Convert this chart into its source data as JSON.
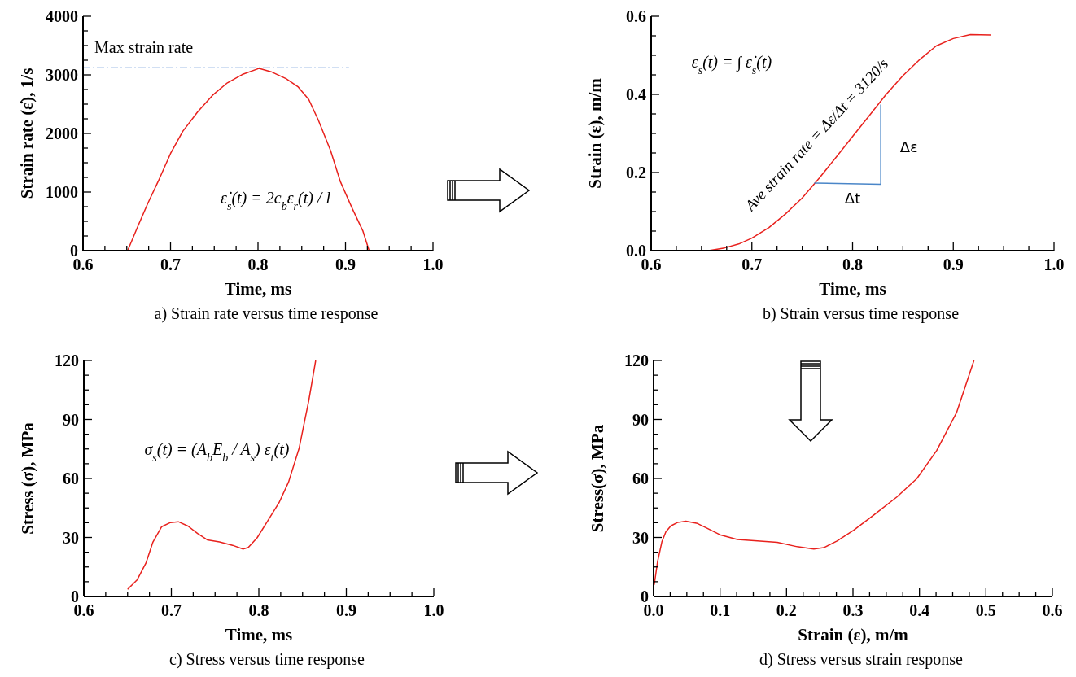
{
  "chart_data": [
    {
      "type": "line",
      "title": "a) Strain rate versus time response",
      "xlabel": "Time, ms",
      "ylabel": "Strain rate (ε̇), 1/s",
      "x": [
        0.651,
        0.663,
        0.674,
        0.686,
        0.7,
        0.714,
        0.731,
        0.748,
        0.765,
        0.782,
        0.801,
        0.815,
        0.832,
        0.846,
        0.858,
        0.869,
        0.883,
        0.894,
        0.908,
        0.92,
        0.927
      ],
      "series": [
        {
          "color": "#e8211d",
          "values": [
            0,
            426,
            805,
            1185,
            1657,
            2036,
            2367,
            2651,
            2864,
            3006,
            3110,
            3053,
            2935,
            2793,
            2580,
            2225,
            1704,
            1183,
            710,
            331,
            0
          ]
        }
      ],
      "xlim": [
        0.6,
        1.0
      ],
      "ylim": [
        0,
        4000
      ],
      "xticks": [
        0.6,
        {
          "value": 0.625,
          "label": null
        },
        {
          "value": 0.65,
          "label": null
        },
        {
          "value": 0.675,
          "label": null
        },
        0.7,
        {
          "value": 0.725,
          "label": null
        },
        {
          "value": 0.75,
          "label": null
        },
        {
          "value": 0.775,
          "label": null
        },
        0.8,
        {
          "value": 0.825,
          "label": null
        },
        {
          "value": 0.85,
          "label": null
        },
        {
          "value": 0.875,
          "label": null
        },
        0.9,
        {
          "value": 0.925,
          "label": null
        },
        {
          "value": 0.95,
          "label": null
        },
        {
          "value": 0.975,
          "label": null
        },
        {
          "value": 1.0,
          "label": "1.0"
        }
      ],
      "yticks": [
        0,
        {
          "value": 250,
          "label": null
        },
        {
          "value": 500,
          "label": null
        },
        {
          "value": 750,
          "label": null
        },
        1000,
        {
          "value": 1250,
          "label": null
        },
        {
          "value": 1500,
          "label": null
        },
        {
          "value": 1750,
          "label": null
        },
        2000,
        {
          "value": 2250,
          "label": null
        },
        {
          "value": 2500,
          "label": null
        },
        {
          "value": 2750,
          "label": null
        },
        3000,
        {
          "value": 3250,
          "label": null
        },
        {
          "value": 3500,
          "label": null
        },
        {
          "value": 3750,
          "label": null
        },
        4000
      ],
      "ref_lines": [
        {
          "axis": "y",
          "value": 3120,
          "label": "Max strain rate",
          "color": "#4a7fd0",
          "line_style": "dashed"
        }
      ],
      "annotations": [
        "ε̇$_{s}$(t) = 2c$_{b}$ε$_{r}$(t) / l"
      ]
    },
    {
      "type": "line",
      "title": "b) Strain versus time response",
      "xlabel": "Time, ms",
      "ylabel": "Strain (ε), m/m",
      "series": [
        {
          "color": "#e8211d",
          "x": [
            0.657,
            0.673,
            0.687,
            0.7,
            0.717,
            0.733,
            0.75,
            0.767,
            0.783,
            0.8,
            0.817,
            0.833,
            0.85,
            0.867,
            0.883,
            0.9,
            0.917,
            0.937
          ],
          "values": [
            0,
            0.007,
            0.017,
            0.032,
            0.059,
            0.093,
            0.135,
            0.186,
            0.237,
            0.292,
            0.347,
            0.399,
            0.448,
            0.49,
            0.524,
            0.543,
            0.553,
            0.552
          ]
        },
        {
          "color": "#4a86c8",
          "x": [
            0.762,
            0.828,
            0.828
          ],
          "values": [
            0.173,
            0.17,
            0.374
          ]
        }
      ],
      "xlim": [
        0.6,
        1.0
      ],
      "ylim": [
        0,
        0.6
      ],
      "xticks": [
        0.6,
        {
          "value": 0.625,
          "label": null
        },
        {
          "value": 0.65,
          "label": null
        },
        {
          "value": 0.675,
          "label": null
        },
        0.7,
        {
          "value": 0.725,
          "label": null
        },
        {
          "value": 0.75,
          "label": null
        },
        {
          "value": 0.775,
          "label": null
        },
        0.8,
        {
          "value": 0.825,
          "label": null
        },
        {
          "value": 0.85,
          "label": null
        },
        {
          "value": 0.875,
          "label": null
        },
        0.9,
        {
          "value": 0.925,
          "label": null
        },
        {
          "value": 0.95,
          "label": null
        },
        {
          "value": 0.975,
          "label": null
        },
        {
          "value": 1.0,
          "label": "1.0"
        }
      ],
      "yticks": [
        {
          "value": 0,
          "label": "0.0"
        },
        {
          "value": 0.05,
          "label": null
        },
        {
          "value": 0.1,
          "label": null
        },
        {
          "value": 0.15,
          "label": null
        },
        0.2,
        {
          "value": 0.25,
          "label": null
        },
        {
          "value": 0.3,
          "label": null
        },
        {
          "value": 0.35,
          "label": null
        },
        0.4,
        {
          "value": 0.45,
          "label": null
        },
        {
          "value": 0.5,
          "label": null
        },
        {
          "value": 0.55,
          "label": null
        },
        0.6
      ],
      "annotations": [
        "ε$_{s}$(t) = ∫ ε̇$_{s}$(t)",
        "Ave strain rate = Δε/Δt = 3120/s",
        "Δε",
        "Δt"
      ]
    },
    {
      "type": "line",
      "title": "c) Stress versus time response",
      "xlabel": "Time, ms",
      "ylabel": "Stress (σ), MPa",
      "x": [
        0.65,
        0.661,
        0.671,
        0.679,
        0.689,
        0.699,
        0.708,
        0.719,
        0.73,
        0.741,
        0.755,
        0.77,
        0.782,
        0.788,
        0.798,
        0.809,
        0.823,
        0.834,
        0.846,
        0.857,
        0.865
      ],
      "series": [
        {
          "color": "#e8211d",
          "values": [
            3.6,
            8.5,
            17,
            27.7,
            35.5,
            37.6,
            38,
            35.8,
            32,
            28.8,
            27.7,
            26,
            24.1,
            24.9,
            29.8,
            37.6,
            47.6,
            58.2,
            75.3,
            99.4,
            120
          ]
        }
      ],
      "xlim": [
        0.6,
        1.0
      ],
      "ylim": [
        0,
        120
      ],
      "xticks": [
        0.6,
        {
          "value": 0.625,
          "label": null
        },
        {
          "value": 0.65,
          "label": null
        },
        {
          "value": 0.675,
          "label": null
        },
        0.7,
        {
          "value": 0.725,
          "label": null
        },
        {
          "value": 0.75,
          "label": null
        },
        {
          "value": 0.775,
          "label": null
        },
        0.8,
        {
          "value": 0.825,
          "label": null
        },
        {
          "value": 0.85,
          "label": null
        },
        {
          "value": 0.875,
          "label": null
        },
        0.9,
        {
          "value": 0.925,
          "label": null
        },
        {
          "value": 0.95,
          "label": null
        },
        {
          "value": 0.975,
          "label": null
        },
        {
          "value": 1.0,
          "label": "1.0"
        }
      ],
      "yticks": [
        0,
        {
          "value": 7.5,
          "label": null
        },
        {
          "value": 15,
          "label": null
        },
        {
          "value": 22.5,
          "label": null
        },
        30,
        {
          "value": 37.5,
          "label": null
        },
        {
          "value": 45,
          "label": null
        },
        {
          "value": 52.5,
          "label": null
        },
        60,
        {
          "value": 67.5,
          "label": null
        },
        {
          "value": 75,
          "label": null
        },
        {
          "value": 82.5,
          "label": null
        },
        90,
        {
          "value": 97.5,
          "label": null
        },
        {
          "value": 105,
          "label": null
        },
        {
          "value": 112.5,
          "label": null
        },
        120
      ],
      "annotations": [
        "σ$_{s}$(t) = (A$_{b}$E$_{b}$ / A$_{s}$) ε$_{t}$(t)"
      ]
    },
    {
      "type": "line",
      "title": "d) Stress versus strain response",
      "xlabel": "Strain (ε), m/m",
      "ylabel": "Stress(σ), MPa",
      "x": [
        0.001,
        0.006,
        0.0125,
        0.0185,
        0.026,
        0.036,
        0.0485,
        0.066,
        0.081,
        0.101,
        0.126,
        0.156,
        0.186,
        0.216,
        0.241,
        0.256,
        0.276,
        0.301,
        0.331,
        0.366,
        0.396,
        0.426,
        0.456,
        0.482
      ],
      "series": [
        {
          "color": "#e8211d",
          "values": [
            5.9,
            17.7,
            27.8,
            32.9,
            35.9,
            37.6,
            38.3,
            37.1,
            34.6,
            31.2,
            29,
            28.2,
            27.5,
            25.3,
            24.1,
            24.8,
            28.2,
            33.7,
            41.3,
            50.6,
            59.9,
            74.2,
            93.6,
            120
          ]
        }
      ],
      "xlim": [
        0,
        0.6
      ],
      "ylim": [
        0,
        120
      ],
      "xticks": [
        {
          "value": 0,
          "label": "0.0"
        },
        {
          "value": 0.025,
          "label": null
        },
        {
          "value": 0.05,
          "label": null
        },
        {
          "value": 0.075,
          "label": null
        },
        0.1,
        {
          "value": 0.125,
          "label": null
        },
        {
          "value": 0.15,
          "label": null
        },
        {
          "value": 0.175,
          "label": null
        },
        0.2,
        {
          "value": 0.225,
          "label": null
        },
        {
          "value": 0.25,
          "label": null
        },
        {
          "value": 0.275,
          "label": null
        },
        0.3,
        {
          "value": 0.325,
          "label": null
        },
        {
          "value": 0.35,
          "label": null
        },
        {
          "value": 0.375,
          "label": null
        },
        0.4,
        {
          "value": 0.425,
          "label": null
        },
        {
          "value": 0.45,
          "label": null
        },
        {
          "value": 0.475,
          "label": null
        },
        0.5,
        {
          "value": 0.525,
          "label": null
        },
        {
          "value": 0.55,
          "label": null
        },
        {
          "value": 0.575,
          "label": null
        },
        0.6
      ],
      "yticks": [
        0,
        {
          "value": 7.5,
          "label": null
        },
        {
          "value": 15,
          "label": null
        },
        {
          "value": 22.5,
          "label": null
        },
        30,
        {
          "value": 37.5,
          "label": null
        },
        {
          "value": 45,
          "label": null
        },
        {
          "value": 52.5,
          "label": null
        },
        60,
        {
          "value": 67.5,
          "label": null
        },
        {
          "value": 75,
          "label": null
        },
        {
          "value": 82.5,
          "label": null
        },
        90,
        {
          "value": 97.5,
          "label": null
        },
        {
          "value": 105,
          "label": null
        },
        {
          "value": 112.5,
          "label": null
        },
        120
      ]
    }
  ]
}
